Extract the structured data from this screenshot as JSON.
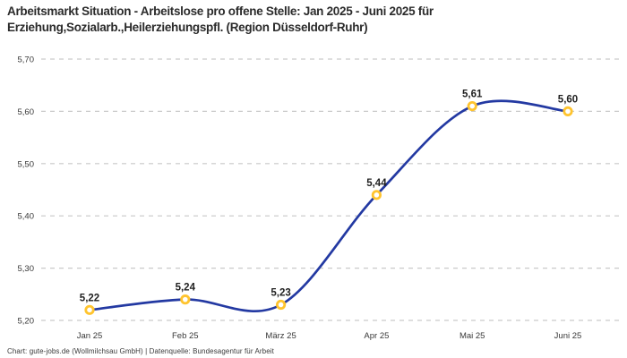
{
  "header": {
    "title_line1": "Arbeitsmarkt Situation - Arbeitslose pro offene Stelle: Jan 2025 - Juni 2025 für",
    "title_line2": "Erziehung,Sozialarb.,Heilerziehungspfl. (Region Düsseldorf-Ruhr)"
  },
  "footer": {
    "credit": "Chart: gute-jobs.de (Wollmilchsau GmbH) | Datenquelle: Bundesagentur für Arbeit"
  },
  "colors": {
    "line": "#2339a2",
    "marker_ring": "#ffc42e",
    "marker_fill": "#ffffff",
    "grid": "#c9c9c9",
    "title_text": "#2b2b2b",
    "axis_text": "#383838",
    "point_label_text": "#1f1f1f"
  },
  "chart_data": {
    "type": "line",
    "title": "Arbeitsmarkt Situation - Arbeitslose pro offene Stelle: Jan 2025 - Juni 2025 für Erziehung,Sozialarb.,Heilerziehungspfl. (Region Düsseldorf-Ruhr)",
    "categories": [
      "Jan 25",
      "Feb 25",
      "März 25",
      "Apr 25",
      "Mai 25",
      "Juni 25"
    ],
    "values": [
      5.22,
      5.24,
      5.23,
      5.44,
      5.61,
      5.6
    ],
    "point_labels": [
      "5,22",
      "5,24",
      "5,23",
      "5,44",
      "5,61",
      "5,60"
    ],
    "y_ticks": [
      {
        "value": 5.7,
        "label": "5,70"
      },
      {
        "value": 5.6,
        "label": "5,60"
      },
      {
        "value": 5.5,
        "label": "5,50"
      },
      {
        "value": 5.4,
        "label": "5,40"
      },
      {
        "value": 5.3,
        "label": "5,30"
      },
      {
        "value": 5.2,
        "label": "5,20"
      }
    ],
    "ylim": [
      5.2,
      5.7
    ],
    "xlabel": "",
    "ylabel": "",
    "grid": "dashed-horizontal",
    "legend": "none"
  }
}
